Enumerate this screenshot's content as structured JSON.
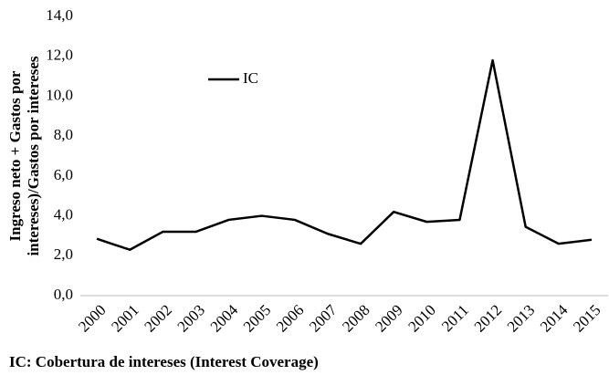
{
  "chart_data": {
    "type": "line",
    "y_label": [
      "Ingreso neto + Gastos por",
      "intereses)/Gastos por intereses"
    ],
    "footnote": "IC: Cobertura de intereses (Interest Coverage)",
    "categories": [
      "2000",
      "2001",
      "2002",
      "2003",
      "2004",
      "2005",
      "2006",
      "2007",
      "2008",
      "2009",
      "2010",
      "2011",
      "2012",
      "2013",
      "2014",
      "2015"
    ],
    "series": [
      {
        "name": "IC",
        "color": "#000000",
        "values": [
          2.85,
          2.3,
          3.2,
          3.2,
          3.8,
          4.0,
          3.8,
          3.1,
          2.6,
          4.2,
          3.7,
          3.8,
          11.8,
          3.45,
          2.6,
          2.8
        ]
      }
    ],
    "ylim": [
      0,
      14
    ],
    "yticks": [
      {
        "value": 0,
        "label": "0,0"
      },
      {
        "value": 2,
        "label": "2,0"
      },
      {
        "value": 4,
        "label": "4,0"
      },
      {
        "value": 6,
        "label": "6,0"
      },
      {
        "value": 8,
        "label": "8,0"
      },
      {
        "value": 10,
        "label": "10,0"
      },
      {
        "value": 12,
        "label": "12,0"
      },
      {
        "value": 14,
        "label": "14,0"
      }
    ],
    "grid": false
  }
}
